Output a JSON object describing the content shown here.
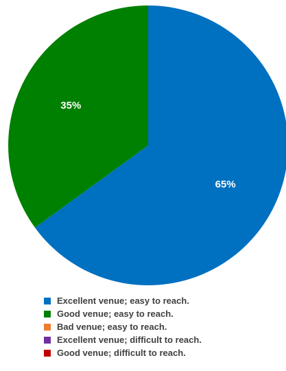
{
  "chart_data": {
    "type": "pie",
    "title": "",
    "legend_position": "bottom",
    "slices": [
      {
        "name": "Excellent venue; easy to reach.",
        "value": 65,
        "label": "65%",
        "color": "#0070C0"
      },
      {
        "name": "Good venue; easy to reach.",
        "value": 35,
        "label": "35%",
        "color": "#008000"
      },
      {
        "name": "Bad venue; easy to reach.",
        "value": 0,
        "label": "",
        "color": "#ED7D31"
      },
      {
        "name": "Excellent venue; difficult to reach.",
        "value": 0,
        "label": "",
        "color": "#7030A0"
      },
      {
        "name": "Good venue; difficult to reach.",
        "value": 0,
        "label": "",
        "color": "#C00000"
      }
    ]
  }
}
